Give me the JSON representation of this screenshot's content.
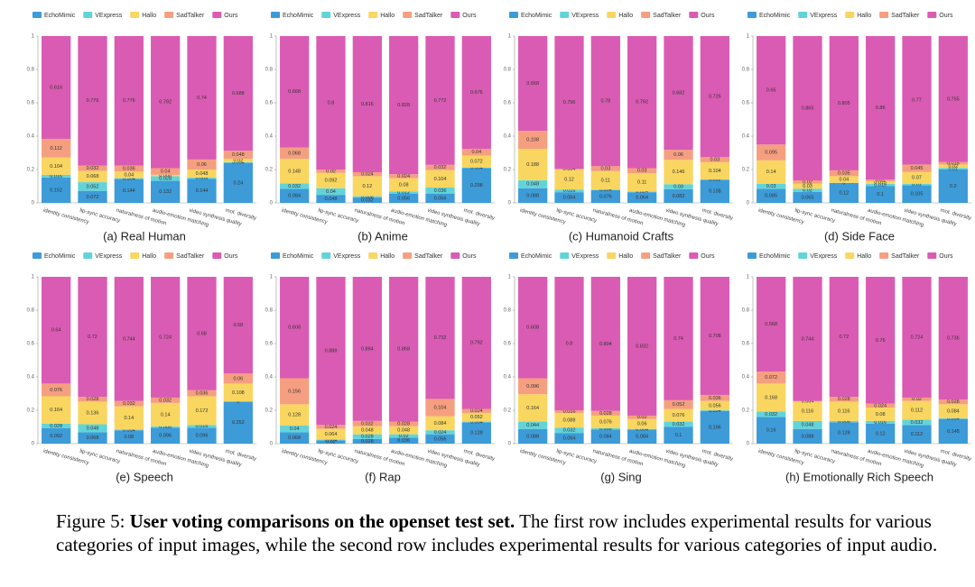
{
  "chart_data": [
    {
      "type": "bar",
      "stacked": true,
      "title": "(a) Real Human",
      "categories": [
        "identity consistency",
        "lip-sync accuracy",
        "naturalness of motion",
        "audio-emotion matching",
        "video synthesis quality",
        "mot. diversity"
      ],
      "ylim": [
        0,
        1
      ],
      "yticks": [
        0,
        0.2,
        0.4,
        0.6,
        0.8,
        1
      ],
      "series": [
        {
          "name": "EchoMimic",
          "color": "#3d9bd8",
          "values": [
            0.152,
            0.072,
            0.144,
            0.132,
            0.144,
            0.24
          ]
        },
        {
          "name": "VExpress",
          "color": "#62d4d9",
          "values": [
            0.016,
            0.052,
            0.004,
            0.028,
            0.008,
            0.004
          ]
        },
        {
          "name": "Hallo",
          "color": "#f8d660",
          "values": [
            0.104,
            0.068,
            0.04,
            0.008,
            0.048,
            0.02
          ]
        },
        {
          "name": "SadTalker",
          "color": "#f59f80",
          "values": [
            0.112,
            0.032,
            0.036,
            0.04,
            0.06,
            0.048
          ]
        },
        {
          "name": "Ours",
          "color": "#da5bb3",
          "values": [
            0.616,
            0.776,
            0.776,
            0.792,
            0.74,
            0.688
          ]
        }
      ]
    },
    {
      "type": "bar",
      "stacked": true,
      "title": "(b) Anime",
      "categories": [
        "identity consistency",
        "lip-sync accuracy",
        "naturalness of motion",
        "audio-emotion matching",
        "video synthesis quality",
        "mot. diversity"
      ],
      "ylim": [
        0,
        1
      ],
      "yticks": [
        0,
        0.2,
        0.4,
        0.6,
        0.8,
        1
      ],
      "series": [
        {
          "name": "EchoMimic",
          "color": "#3d9bd8",
          "values": [
            0.084,
            0.048,
            0.032,
            0.056,
            0.056,
            0.208
          ]
        },
        {
          "name": "VExpress",
          "color": "#62d4d9",
          "values": [
            0.032,
            0.04,
            0.008,
            0.012,
            0.036,
            0.004
          ]
        },
        {
          "name": "Hallo",
          "color": "#f8d660",
          "values": [
            0.148,
            0.092,
            0.12,
            0.08,
            0.104,
            0.072
          ]
        },
        {
          "name": "SadTalker",
          "color": "#f59f80",
          "values": [
            0.068,
            0.02,
            0.024,
            0.024,
            0.032,
            0.04
          ]
        },
        {
          "name": "Ours",
          "color": "#da5bb3",
          "values": [
            0.668,
            0.8,
            0.816,
            0.828,
            0.772,
            0.676
          ]
        }
      ]
    },
    {
      "type": "bar",
      "stacked": true,
      "title": "(c) Humanoid Crafts",
      "categories": [
        "identity consistency",
        "lip-sync accuracy",
        "naturalness of motion",
        "audio-emotion matching",
        "video synthesis quality",
        "mot. diversity"
      ],
      "ylim": [
        0,
        1
      ],
      "yticks": [
        0,
        0.2,
        0.4,
        0.6,
        0.8,
        1
      ],
      "series": [
        {
          "name": "EchoMimic",
          "color": "#3d9bd8",
          "values": [
            0.088,
            0.064,
            0.076,
            0.064,
            0.082,
            0.138
          ]
        },
        {
          "name": "VExpress",
          "color": "#62d4d9",
          "values": [
            0.048,
            0.016,
            0.004,
            0.004,
            0.03,
            0.002
          ]
        },
        {
          "name": "Hallo",
          "color": "#f8d660",
          "values": [
            0.188,
            0.12,
            0.11,
            0.11,
            0.146,
            0.104
          ]
        },
        {
          "name": "SadTalker",
          "color": "#f59f80",
          "values": [
            0.108,
            0.004,
            0.03,
            0.03,
            0.06,
            0.03
          ]
        },
        {
          "name": "Ours",
          "color": "#da5bb3",
          "values": [
            0.568,
            0.796,
            0.78,
            0.792,
            0.682,
            0.726
          ]
        }
      ]
    },
    {
      "type": "bar",
      "stacked": true,
      "title": "(d) Side Face",
      "categories": [
        "identity consistency",
        "lip-sync accuracy",
        "naturalness of motion",
        "audio-emotion matching",
        "video synthesis quality",
        "mot. diversity"
      ],
      "ylim": [
        0,
        1
      ],
      "yticks": [
        0,
        0.2,
        0.4,
        0.6,
        0.8,
        1
      ],
      "series": [
        {
          "name": "EchoMimic",
          "color": "#3d9bd8",
          "values": [
            0.085,
            0.065,
            0.12,
            0.1,
            0.105,
            0.2
          ]
        },
        {
          "name": "VExpress",
          "color": "#62d4d9",
          "values": [
            0.03,
            0.02,
            0,
            0.015,
            0.01,
            0.01
          ]
        },
        {
          "name": "Hallo",
          "color": "#f8d660",
          "values": [
            0.14,
            0.03,
            0.04,
            0.015,
            0.07,
            0.02
          ]
        },
        {
          "name": "SadTalker",
          "color": "#f59f80",
          "values": [
            0.095,
            0.02,
            0.035,
            0.01,
            0.045,
            0.015
          ]
        },
        {
          "name": "Ours",
          "color": "#da5bb3",
          "values": [
            0.65,
            0.865,
            0.805,
            0.86,
            0.77,
            0.755
          ]
        }
      ]
    },
    {
      "type": "bar",
      "stacked": true,
      "title": "(e) Speech",
      "categories": [
        "identity consistency",
        "lip-sync accuracy",
        "naturalness of motion",
        "audio-emotion matching",
        "video synthesis quality",
        "mot. diversity"
      ],
      "ylim": [
        0,
        1
      ],
      "yticks": [
        0,
        0.2,
        0.4,
        0.6,
        0.8,
        1
      ],
      "series": [
        {
          "name": "EchoMimic",
          "color": "#3d9bd8",
          "values": [
            0.092,
            0.068,
            0.08,
            0.096,
            0.096,
            0.252
          ]
        },
        {
          "name": "VExpress",
          "color": "#62d4d9",
          "values": [
            0.028,
            0.048,
            0.004,
            0.008,
            0.016,
            0
          ]
        },
        {
          "name": "Hallo",
          "color": "#f8d660",
          "values": [
            0.164,
            0.136,
            0.14,
            0.14,
            0.172,
            0.108
          ]
        },
        {
          "name": "SadTalker",
          "color": "#f59f80",
          "values": [
            0.076,
            0.028,
            0.032,
            0.032,
            0.036,
            0.06
          ]
        },
        {
          "name": "Ours",
          "color": "#da5bb3",
          "values": [
            0.64,
            0.72,
            0.744,
            0.724,
            0.68,
            0.58
          ]
        }
      ]
    },
    {
      "type": "bar",
      "stacked": true,
      "title": "(f) Rap",
      "categories": [
        "identity consistency",
        "lip-sync accuracy",
        "naturalness of motion",
        "audio-emotion matching",
        "video synthesis quality",
        "mot. diversity"
      ],
      "ylim": [
        0,
        1
      ],
      "yticks": [
        0,
        0.2,
        0.4,
        0.6,
        0.8,
        1
      ],
      "series": [
        {
          "name": "EchoMimic",
          "color": "#3d9bd8",
          "values": [
            0.068,
            0.02,
            0.028,
            0.036,
            0.056,
            0.128
          ]
        },
        {
          "name": "VExpress",
          "color": "#62d4d9",
          "values": [
            0.04,
            0.004,
            0.028,
            0.02,
            0.024,
            0.004
          ]
        },
        {
          "name": "Hallo",
          "color": "#f8d660",
          "values": [
            0.128,
            0.064,
            0.048,
            0.048,
            0.084,
            0.052
          ]
        },
        {
          "name": "SadTalker",
          "color": "#f59f80",
          "values": [
            0.156,
            0.024,
            0.032,
            0.028,
            0.104,
            0.024
          ]
        },
        {
          "name": "Ours",
          "color": "#da5bb3",
          "values": [
            0.608,
            0.888,
            0.864,
            0.868,
            0.732,
            0.792
          ]
        }
      ]
    },
    {
      "type": "bar",
      "stacked": true,
      "title": "(g) Sing",
      "categories": [
        "identity consistency",
        "lip-sync accuracy",
        "naturalness of motion",
        "audio-emotion matching",
        "video synthesis quality",
        "mot. diversity"
      ],
      "ylim": [
        0,
        1
      ],
      "yticks": [
        0,
        0.2,
        0.4,
        0.6,
        0.8,
        1
      ],
      "series": [
        {
          "name": "EchoMimic",
          "color": "#3d9bd8",
          "values": [
            0.088,
            0.064,
            0.084,
            0.084,
            0.1,
            0.196
          ]
        },
        {
          "name": "VExpress",
          "color": "#62d4d9",
          "values": [
            0.044,
            0.032,
            0.008,
            0.004,
            0.032,
            0.004
          ]
        },
        {
          "name": "Hallo",
          "color": "#f8d660",
          "values": [
            0.164,
            0.088,
            0.076,
            0.06,
            0.076,
            0.056
          ]
        },
        {
          "name": "SadTalker",
          "color": "#f59f80",
          "values": [
            0.096,
            0.016,
            0.028,
            0.02,
            0.052,
            0.036
          ]
        },
        {
          "name": "Ours",
          "color": "#da5bb3",
          "values": [
            0.608,
            0.8,
            0.804,
            0.832,
            0.74,
            0.708
          ]
        }
      ]
    },
    {
      "type": "bar",
      "stacked": true,
      "title": "(h) Emotionally Rich Speech",
      "categories": [
        "identity consistency",
        "lip-sync accuracy",
        "naturalness of motion",
        "audio-emotion matching",
        "video synthesis quality",
        "mot. diversity"
      ],
      "ylim": [
        0,
        1
      ],
      "yticks": [
        0,
        0.2,
        0.4,
        0.6,
        0.8,
        1
      ],
      "series": [
        {
          "name": "EchoMimic",
          "color": "#3d9bd8",
          "values": [
            0.16,
            0.088,
            0.128,
            0.12,
            0.112,
            0.148
          ]
        },
        {
          "name": "VExpress",
          "color": "#62d4d9",
          "values": [
            0.032,
            0.048,
            0.008,
            0.016,
            0.032,
            0.004
          ]
        },
        {
          "name": "Hallo",
          "color": "#f8d660",
          "values": [
            0.168,
            0.116,
            0.116,
            0.08,
            0.112,
            0.084
          ]
        },
        {
          "name": "SadTalker",
          "color": "#f59f80",
          "values": [
            0.072,
            0.004,
            0.028,
            0.024,
            0.02,
            0.028
          ]
        },
        {
          "name": "Ours",
          "color": "#da5bb3",
          "values": [
            0.568,
            0.744,
            0.72,
            0.76,
            0.724,
            0.736
          ]
        }
      ]
    }
  ],
  "caption": {
    "label": "Figure 5:",
    "bold": "User voting comparisons on the openset test set.",
    "text": "The first row includes experimental results for various categories of input images, while the second row includes experimental results for various categories of input audio."
  }
}
